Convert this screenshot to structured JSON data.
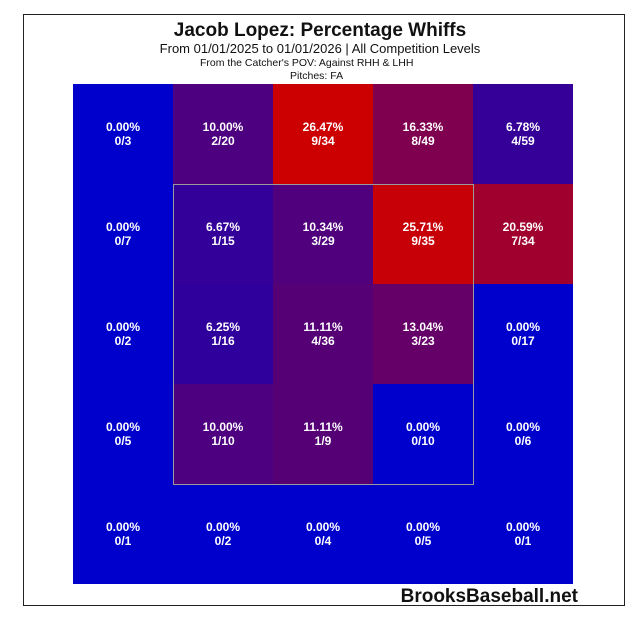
{
  "title": "Jacob Lopez: Percentage Whiffs",
  "subtitle": "From 01/01/2025 to 01/01/2026 | All Competition Levels",
  "pov": "From the Catcher's POV:   Against RHH & LHH",
  "pitches": "Pitches:  FA",
  "watermark": "BrooksBaseball.net",
  "chart_data": {
    "type": "heatmap",
    "title": "Jacob Lopez: Percentage Whiffs",
    "rows": 5,
    "cols": 5,
    "cells": [
      [
        {
          "pct": "0.00%",
          "count": "0/3",
          "value": 0.0
        },
        {
          "pct": "10.00%",
          "count": "2/20",
          "value": 10.0
        },
        {
          "pct": "26.47%",
          "count": "9/34",
          "value": 26.47
        },
        {
          "pct": "16.33%",
          "count": "8/49",
          "value": 16.33
        },
        {
          "pct": "6.78%",
          "count": "4/59",
          "value": 6.78
        }
      ],
      [
        {
          "pct": "0.00%",
          "count": "0/7",
          "value": 0.0
        },
        {
          "pct": "6.67%",
          "count": "1/15",
          "value": 6.67
        },
        {
          "pct": "10.34%",
          "count": "3/29",
          "value": 10.34
        },
        {
          "pct": "25.71%",
          "count": "9/35",
          "value": 25.71
        },
        {
          "pct": "20.59%",
          "count": "7/34",
          "value": 20.59
        }
      ],
      [
        {
          "pct": "0.00%",
          "count": "0/2",
          "value": 0.0
        },
        {
          "pct": "6.25%",
          "count": "1/16",
          "value": 6.25
        },
        {
          "pct": "11.11%",
          "count": "4/36",
          "value": 11.11
        },
        {
          "pct": "13.04%",
          "count": "3/23",
          "value": 13.04
        },
        {
          "pct": "0.00%",
          "count": "0/17",
          "value": 0.0
        }
      ],
      [
        {
          "pct": "0.00%",
          "count": "0/5",
          "value": 0.0
        },
        {
          "pct": "10.00%",
          "count": "1/10",
          "value": 10.0
        },
        {
          "pct": "11.11%",
          "count": "1/9",
          "value": 11.11
        },
        {
          "pct": "0.00%",
          "count": "0/10",
          "value": 0.0
        },
        {
          "pct": "0.00%",
          "count": "0/6",
          "value": 0.0
        }
      ],
      [
        {
          "pct": "0.00%",
          "count": "0/1",
          "value": 0.0
        },
        {
          "pct": "0.00%",
          "count": "0/2",
          "value": 0.0
        },
        {
          "pct": "0.00%",
          "count": "0/4",
          "value": 0.0
        },
        {
          "pct": "0.00%",
          "count": "0/5",
          "value": 0.0
        },
        {
          "pct": "0.00%",
          "count": "0/1",
          "value": 0.0
        }
      ]
    ],
    "color_scale": {
      "low": "#0000cc",
      "high": "#cc0000",
      "min": 0,
      "max": 26.47
    },
    "strike_zone": {
      "rows": [
        1,
        3
      ],
      "cols": [
        1,
        3
      ]
    }
  }
}
